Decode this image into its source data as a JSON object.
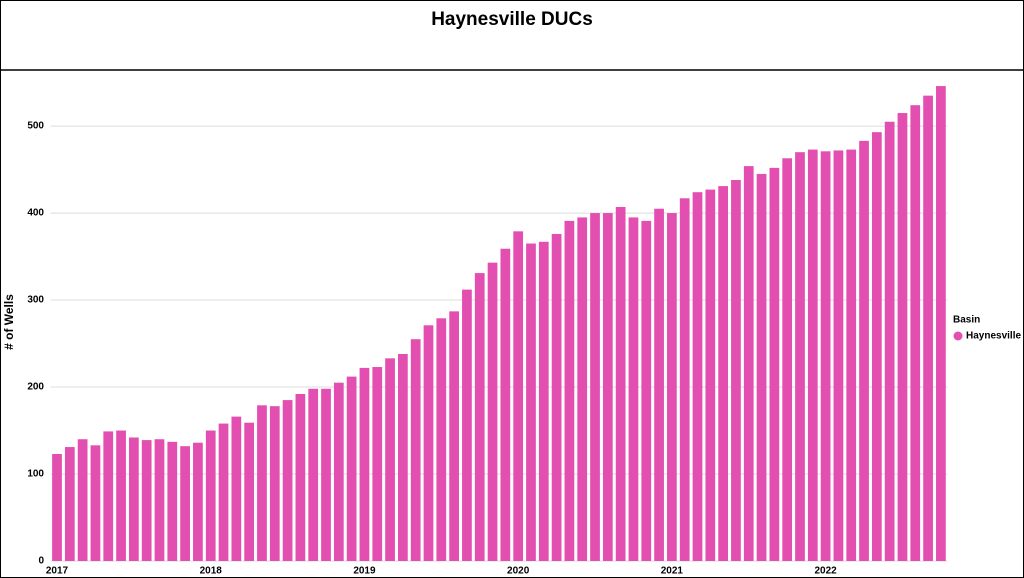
{
  "chart_data": {
    "type": "bar",
    "title": "Haynesville DUCs",
    "y_label": "# of Wells",
    "legend_title": "Basin",
    "categories": [
      "2017",
      null,
      null,
      null,
      null,
      null,
      null,
      null,
      null,
      null,
      null,
      null,
      "2018",
      null,
      null,
      null,
      null,
      null,
      null,
      null,
      null,
      null,
      null,
      null,
      "2019",
      null,
      null,
      null,
      null,
      null,
      null,
      null,
      null,
      null,
      null,
      null,
      "2020",
      null,
      null,
      null,
      null,
      null,
      null,
      null,
      null,
      null,
      null,
      null,
      "2021",
      null,
      null,
      null,
      null,
      null,
      null,
      null,
      null,
      null,
      null,
      null,
      "2022",
      null,
      null,
      null,
      null,
      null,
      null,
      null,
      null,
      null
    ],
    "series": [
      {
        "name": "Haynesville",
        "color": "#e24fb0",
        "values": [
          123,
          131,
          140,
          133,
          149,
          150,
          142,
          139,
          140,
          137,
          132,
          136,
          150,
          158,
          166,
          159,
          179,
          178,
          185,
          192,
          198,
          198,
          205,
          212,
          222,
          223,
          233,
          238,
          255,
          271,
          279,
          287,
          312,
          331,
          343,
          359,
          379,
          365,
          367,
          376,
          391,
          395,
          400,
          400,
          407,
          395,
          391,
          405,
          400,
          417,
          424,
          427,
          431,
          438,
          454,
          445,
          452,
          463,
          470,
          473,
          471,
          472,
          473,
          483,
          493,
          505,
          515,
          524,
          535,
          546
        ]
      }
    ],
    "ylim": [
      0,
      550
    ],
    "yticks": [
      0,
      100,
      200,
      300,
      400,
      500
    ],
    "grid": true,
    "legend": "right"
  }
}
